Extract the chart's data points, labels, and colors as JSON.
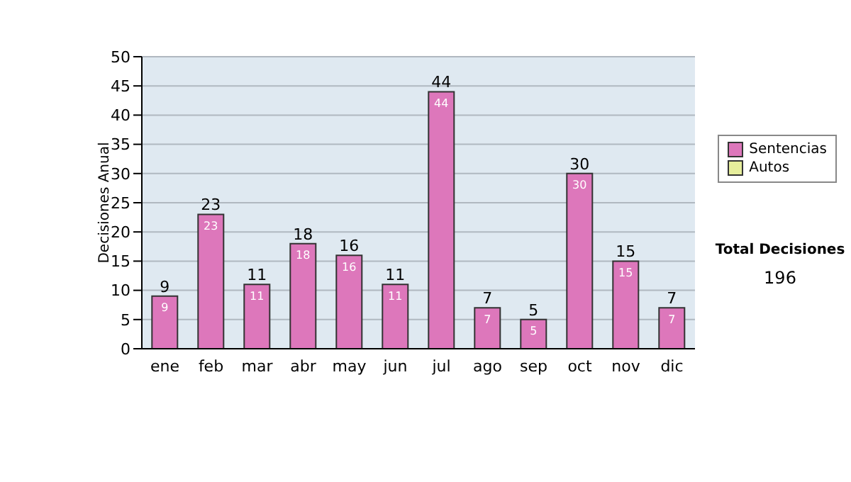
{
  "chart_data": {
    "type": "bar",
    "ylabel": "Decisiones Anual",
    "categories": [
      "ene",
      "feb",
      "mar",
      "abr",
      "may",
      "jun",
      "jul",
      "ago",
      "sep",
      "oct",
      "nov",
      "dic"
    ],
    "series": [
      {
        "name": "Sentencias",
        "color": "#dd77bb",
        "values": [
          9,
          23,
          11,
          18,
          16,
          11,
          44,
          7,
          5,
          30,
          15,
          7
        ],
        "value_labels": [
          "9",
          "23",
          "11",
          "18",
          "16",
          "11",
          "44",
          "7",
          "5",
          "30",
          "15",
          "7"
        ]
      },
      {
        "name": "Autos",
        "color": "#e6ee9c",
        "values": [
          null,
          null,
          null,
          null,
          null,
          null,
          null,
          null,
          null,
          null,
          null,
          null
        ]
      }
    ],
    "stacked": true,
    "totals": [
      "9",
      "23",
      "11",
      "18",
      "16",
      "11",
      "44",
      "7",
      "5",
      "30",
      "15",
      "7"
    ],
    "ylim": [
      0,
      50
    ],
    "yticks": [
      0,
      5,
      10,
      15,
      20,
      25,
      30,
      35,
      40,
      45,
      50
    ],
    "grid": "y",
    "legend": "right",
    "annotations": [
      "Total Decisiones",
      "196"
    ]
  }
}
